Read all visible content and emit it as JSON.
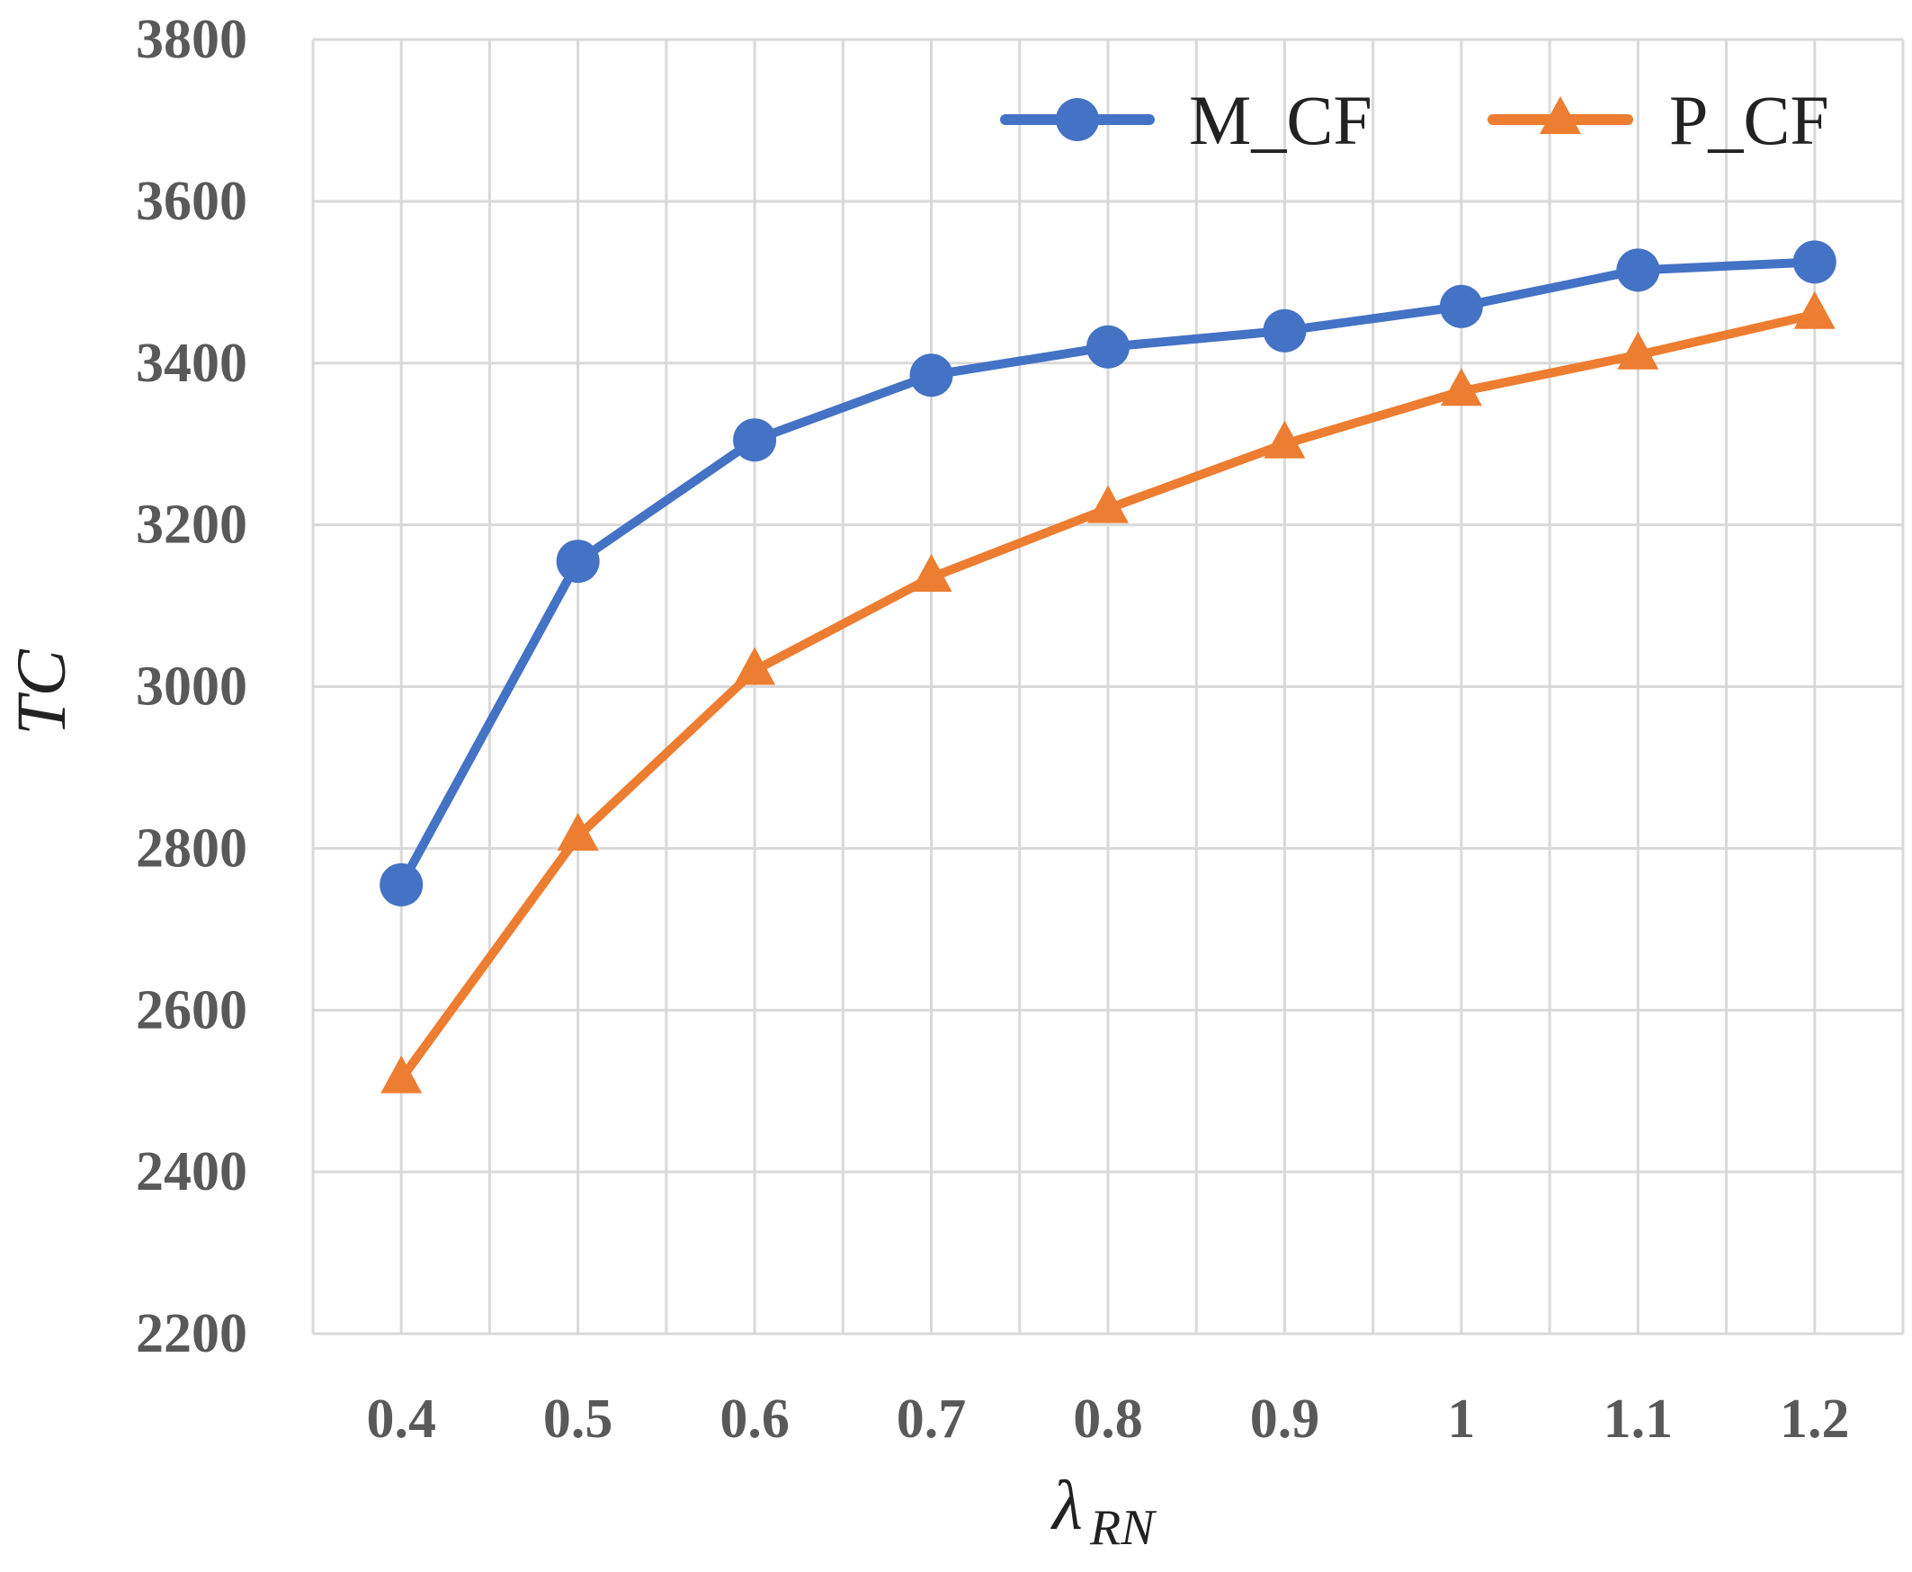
{
  "chart_data": {
    "type": "line",
    "x": [
      0.4,
      0.5,
      0.6,
      0.7,
      0.8,
      0.9,
      1,
      1.1,
      1.2
    ],
    "x_tick_labels": [
      "0.4",
      "0.5",
      "0.6",
      "0.7",
      "0.8",
      "0.9",
      "1",
      "1.1",
      "1.2"
    ],
    "y_tick_labels": [
      "2200",
      "2400",
      "2600",
      "2800",
      "3000",
      "3200",
      "3400",
      "3600",
      "3800"
    ],
    "ylim": [
      2200,
      3800
    ],
    "xlabel": "λ",
    "xlabel_subscript": "RN",
    "ylabel": "TC",
    "grid": true,
    "legend_position": "top-right",
    "series": [
      {
        "name": "M_CF",
        "color": "#4472C4",
        "marker": "circle",
        "values": [
          2755,
          3155,
          3305,
          3385,
          3420,
          3440,
          3470,
          3515,
          3525
        ]
      },
      {
        "name": "P_CF",
        "color": "#ED7D31",
        "marker": "triangle",
        "values": [
          2515,
          2815,
          3020,
          3135,
          3220,
          3300,
          3365,
          3410,
          3460
        ]
      }
    ]
  }
}
